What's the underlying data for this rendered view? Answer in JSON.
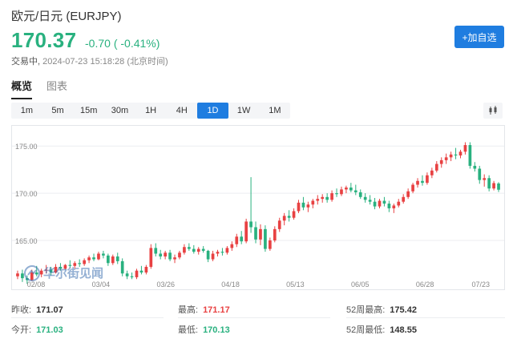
{
  "header": {
    "title": "欧元/日元 (EURJPY)",
    "price": "170.37",
    "change": "-0.70",
    "change_pct": "( -0.41%)",
    "status_label": "交易中,",
    "status_time": "2024-07-23 15:18:28 (北京时间)",
    "follow_button": "+加自选"
  },
  "tabs": [
    {
      "label": "概览",
      "active": true
    },
    {
      "label": "图表",
      "active": false
    }
  ],
  "periods": [
    {
      "label": "1m",
      "active": false
    },
    {
      "label": "5m",
      "active": false
    },
    {
      "label": "15m",
      "active": false
    },
    {
      "label": "30m",
      "active": false
    },
    {
      "label": "1H",
      "active": false
    },
    {
      "label": "4H",
      "active": false
    },
    {
      "label": "1D",
      "active": true
    },
    {
      "label": "1W",
      "active": false
    },
    {
      "label": "1M",
      "active": false
    }
  ],
  "watermark": "华尔街见闻",
  "colors": {
    "up": "#e84142",
    "down": "#29b17f",
    "accent": "#1f7de0"
  },
  "stats": {
    "prev_close": {
      "label": "昨收:",
      "value": "171.07"
    },
    "open": {
      "label": "今开:",
      "value": "171.03"
    },
    "high": {
      "label": "最高:",
      "value": "171.17"
    },
    "low": {
      "label": "最低:",
      "value": "170.13"
    },
    "high52": {
      "label": "52周最高:",
      "value": "175.42"
    },
    "low52": {
      "label": "52周最低:",
      "value": "148.55"
    }
  },
  "chart_data": {
    "type": "candlestick",
    "title": "",
    "xlabel": "",
    "ylabel": "",
    "y_ticks": [
      "175.00",
      "170.00",
      "165.00"
    ],
    "ylim": [
      160.5,
      176.8
    ],
    "x_ticks": [
      "02/08",
      "03/04",
      "03/26",
      "04/18",
      "05/13",
      "06/05",
      "06/28",
      "07/23"
    ],
    "grid": true,
    "candles_note": "approximate daily OHLC from 2024-02-08 to 2024-07-23",
    "candles": [
      [
        161.2,
        161.8,
        160.9,
        161.5
      ],
      [
        161.5,
        161.9,
        160.6,
        161.0
      ],
      [
        161.0,
        161.3,
        160.4,
        160.8
      ],
      [
        160.8,
        161.9,
        160.7,
        161.6
      ],
      [
        161.6,
        162.3,
        161.2,
        161.4
      ],
      [
        161.4,
        162.0,
        161.1,
        161.8
      ],
      [
        161.8,
        162.4,
        161.5,
        161.9
      ],
      [
        161.9,
        162.2,
        161.3,
        161.6
      ],
      [
        161.6,
        162.5,
        161.5,
        162.2
      ],
      [
        162.2,
        162.6,
        161.8,
        162.0
      ],
      [
        162.0,
        162.5,
        161.9,
        162.4
      ],
      [
        162.4,
        162.9,
        162.1,
        162.3
      ],
      [
        162.3,
        162.8,
        162.0,
        162.6
      ],
      [
        162.6,
        163.0,
        162.2,
        162.5
      ],
      [
        162.5,
        163.1,
        162.3,
        162.9
      ],
      [
        162.9,
        163.4,
        162.6,
        163.2
      ],
      [
        163.2,
        163.6,
        162.8,
        163.0
      ],
      [
        163.0,
        163.8,
        162.9,
        163.6
      ],
      [
        163.6,
        163.9,
        163.1,
        163.4
      ],
      [
        163.4,
        163.6,
        162.3,
        162.6
      ],
      [
        162.6,
        163.5,
        162.4,
        163.3
      ],
      [
        163.3,
        163.7,
        162.5,
        162.8
      ],
      [
        162.8,
        163.1,
        161.2,
        161.5
      ],
      [
        161.5,
        161.8,
        160.9,
        161.2
      ],
      [
        161.2,
        161.6,
        160.9,
        161.1
      ],
      [
        161.1,
        162.0,
        160.9,
        161.8
      ],
      [
        161.8,
        162.3,
        161.4,
        161.6
      ],
      [
        161.6,
        162.4,
        161.4,
        162.2
      ],
      [
        162.2,
        164.6,
        162.0,
        164.2
      ],
      [
        164.2,
        164.7,
        163.3,
        163.6
      ],
      [
        163.6,
        164.0,
        163.0,
        163.3
      ],
      [
        163.3,
        163.9,
        163.0,
        163.7
      ],
      [
        163.7,
        164.0,
        162.8,
        163.0
      ],
      [
        163.0,
        163.5,
        162.6,
        163.2
      ],
      [
        163.2,
        163.9,
        163.0,
        163.7
      ],
      [
        163.7,
        164.6,
        163.5,
        164.3
      ],
      [
        164.3,
        164.7,
        163.9,
        164.1
      ],
      [
        164.1,
        164.5,
        163.6,
        163.8
      ],
      [
        163.8,
        164.3,
        163.5,
        164.1
      ],
      [
        164.1,
        164.4,
        163.7,
        163.9
      ],
      [
        163.9,
        164.0,
        162.7,
        163.0
      ],
      [
        163.0,
        163.9,
        162.8,
        163.6
      ],
      [
        163.6,
        164.0,
        163.3,
        163.8
      ],
      [
        163.8,
        164.2,
        163.4,
        163.7
      ],
      [
        163.7,
        164.4,
        163.5,
        164.2
      ],
      [
        164.2,
        164.9,
        163.9,
        164.6
      ],
      [
        164.6,
        165.7,
        164.3,
        165.4
      ],
      [
        165.4,
        166.0,
        164.6,
        164.9
      ],
      [
        164.9,
        167.3,
        164.7,
        167.0
      ],
      [
        167.0,
        171.7,
        165.8,
        166.4
      ],
      [
        166.4,
        167.0,
        164.7,
        165.1
      ],
      [
        165.1,
        166.7,
        164.5,
        166.2
      ],
      [
        166.2,
        166.6,
        163.8,
        164.1
      ],
      [
        164.1,
        165.3,
        163.9,
        165.0
      ],
      [
        165.0,
        166.5,
        164.8,
        166.2
      ],
      [
        166.2,
        167.4,
        165.9,
        167.1
      ],
      [
        167.1,
        167.9,
        166.6,
        167.6
      ],
      [
        167.6,
        168.2,
        167.0,
        167.4
      ],
      [
        167.4,
        168.4,
        167.2,
        168.1
      ],
      [
        168.1,
        169.3,
        167.9,
        169.0
      ],
      [
        169.0,
        169.6,
        168.2,
        168.5
      ],
      [
        168.5,
        169.1,
        168.0,
        168.8
      ],
      [
        168.8,
        169.4,
        168.4,
        169.2
      ],
      [
        169.2,
        169.8,
        168.8,
        169.4
      ],
      [
        169.4,
        169.9,
        169.0,
        169.6
      ],
      [
        169.6,
        170.0,
        169.0,
        169.3
      ],
      [
        169.3,
        170.3,
        169.1,
        170.0
      ],
      [
        170.0,
        170.5,
        169.6,
        169.9
      ],
      [
        169.9,
        170.7,
        169.7,
        170.4
      ],
      [
        170.4,
        170.8,
        170.0,
        170.6
      ],
      [
        170.6,
        171.1,
        170.1,
        170.3
      ],
      [
        170.3,
        170.9,
        169.8,
        170.1
      ],
      [
        170.1,
        170.4,
        169.4,
        169.6
      ],
      [
        169.6,
        170.0,
        169.0,
        169.3
      ],
      [
        169.3,
        169.8,
        168.8,
        169.1
      ],
      [
        169.1,
        169.5,
        168.3,
        168.6
      ],
      [
        168.6,
        169.4,
        168.4,
        169.2
      ],
      [
        169.2,
        169.6,
        168.6,
        168.9
      ],
      [
        168.9,
        169.2,
        168.0,
        168.4
      ],
      [
        168.4,
        168.9,
        167.9,
        168.7
      ],
      [
        168.7,
        169.4,
        168.5,
        169.1
      ],
      [
        169.1,
        169.9,
        168.9,
        169.6
      ],
      [
        169.6,
        170.5,
        169.4,
        170.2
      ],
      [
        170.2,
        171.1,
        170.0,
        170.9
      ],
      [
        170.9,
        171.6,
        170.6,
        171.3
      ],
      [
        171.3,
        171.9,
        170.8,
        171.1
      ],
      [
        171.1,
        172.2,
        170.9,
        171.9
      ],
      [
        171.9,
        172.7,
        171.6,
        172.4
      ],
      [
        172.4,
        173.4,
        172.2,
        173.1
      ],
      [
        173.1,
        173.8,
        172.7,
        173.5
      ],
      [
        173.5,
        174.2,
        173.1,
        173.8
      ],
      [
        173.8,
        174.4,
        173.4,
        174.1
      ],
      [
        174.1,
        174.8,
        173.6,
        174.0
      ],
      [
        174.0,
        174.6,
        173.7,
        174.4
      ],
      [
        174.4,
        175.4,
        174.1,
        175.1
      ],
      [
        175.1,
        175.4,
        172.6,
        172.9
      ],
      [
        172.9,
        173.3,
        172.3,
        172.6
      ],
      [
        172.6,
        172.9,
        171.0,
        171.4
      ],
      [
        171.4,
        172.0,
        170.7,
        171.6
      ],
      [
        171.6,
        171.9,
        170.2,
        170.5
      ],
      [
        170.5,
        171.3,
        170.3,
        171.07
      ],
      [
        171.03,
        171.17,
        170.13,
        170.37
      ]
    ]
  }
}
